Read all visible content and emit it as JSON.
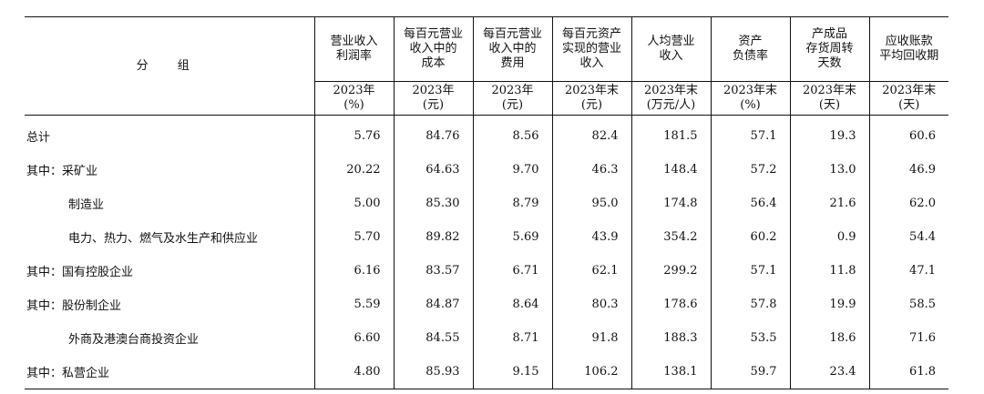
{
  "header": {
    "group_label": "分 组",
    "columns": [
      {
        "name": "营业收入利润率",
        "unit": "2023年(%)"
      },
      {
        "name": "每百元营业收入中的成本",
        "unit": "2023年(元)"
      },
      {
        "name": "每百元营业收入中的费用",
        "unit": "2023年(元)"
      },
      {
        "name": "每百元资产实现的营业收入",
        "unit": "2023年末(元)"
      },
      {
        "name": "人均营业收入",
        "unit": "2023年末(万元/人)"
      },
      {
        "name": "资产负债率",
        "unit": "2023年末(%)"
      },
      {
        "name": "产成品存货周转天数",
        "unit": "2023年末(天)"
      },
      {
        "name": "应收账款平均回收期",
        "unit": "2023年末(天)"
      }
    ],
    "col_lines": [
      [
        "营业收入",
        "利润率"
      ],
      [
        "每百元营业",
        "收入中的",
        "成本"
      ],
      [
        "每百元营业",
        "收入中的",
        "费用"
      ],
      [
        "每百元资产",
        "实现的营业",
        "收入"
      ],
      [
        "人均营业",
        "收入"
      ],
      [
        "资产",
        "负债率"
      ],
      [
        "产成品",
        "存货周转",
        "天数"
      ],
      [
        "应收账款",
        "平均回收期"
      ]
    ],
    "unit_lines": [
      [
        "2023年",
        "(%)"
      ],
      [
        "2023年",
        "(元)"
      ],
      [
        "2023年",
        "(元)"
      ],
      [
        "2023年末",
        "(元)"
      ],
      [
        "2023年末",
        "(万元/人)"
      ],
      [
        "2023年末",
        "(%)"
      ],
      [
        "2023年末",
        "(天)"
      ],
      [
        "2023年末",
        "(天)"
      ]
    ]
  },
  "rows": [
    {
      "label": "总计",
      "indent": false,
      "values": [
        "5.76",
        "84.76",
        "8.56",
        "82.4",
        "181.5",
        "57.1",
        "19.3",
        "60.6"
      ]
    },
    {
      "label": "其中：采矿业",
      "indent": false,
      "values": [
        "20.22",
        "64.63",
        "9.70",
        "46.3",
        "148.4",
        "57.2",
        "13.0",
        "46.9"
      ]
    },
    {
      "label": "制造业",
      "indent": true,
      "values": [
        "5.00",
        "85.30",
        "8.79",
        "95.0",
        "174.8",
        "56.4",
        "21.6",
        "62.0"
      ]
    },
    {
      "label": "电力、热力、燃气及水生产和供应业",
      "indent": true,
      "values": [
        "5.70",
        "89.82",
        "5.69",
        "43.9",
        "354.2",
        "60.2",
        "0.9",
        "54.4"
      ]
    },
    {
      "label": "其中：国有控股企业",
      "indent": false,
      "values": [
        "6.16",
        "83.57",
        "6.71",
        "62.1",
        "299.2",
        "57.1",
        "11.8",
        "47.1"
      ]
    },
    {
      "label": "其中：股份制企业",
      "indent": false,
      "values": [
        "5.59",
        "84.87",
        "8.64",
        "80.3",
        "178.6",
        "57.8",
        "19.9",
        "58.5"
      ]
    },
    {
      "label": "外商及港澳台商投资企业",
      "indent": true,
      "values": [
        "6.60",
        "84.55",
        "8.71",
        "91.8",
        "188.3",
        "53.5",
        "18.6",
        "71.6"
      ]
    },
    {
      "label": "其中：私营企业",
      "indent": false,
      "values": [
        "4.80",
        "85.93",
        "9.15",
        "106.2",
        "138.1",
        "59.7",
        "23.4",
        "61.8"
      ]
    }
  ]
}
